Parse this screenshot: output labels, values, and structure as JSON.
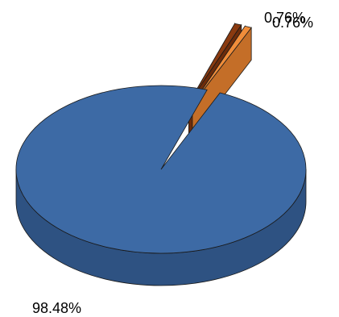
{
  "chart_data": {
    "type": "pie",
    "style": "3d-exploded",
    "labels": [
      "98.48%",
      "0.76%",
      "0.76%"
    ],
    "values": [
      98.48,
      0.76,
      0.76
    ],
    "colors": [
      "#3d6aa5",
      "#8a3a10",
      "#f08d3a"
    ],
    "side_colors": [
      "#2e5282",
      "#6d2c0b",
      "#c46e28"
    ],
    "legend": "none",
    "title": ""
  }
}
